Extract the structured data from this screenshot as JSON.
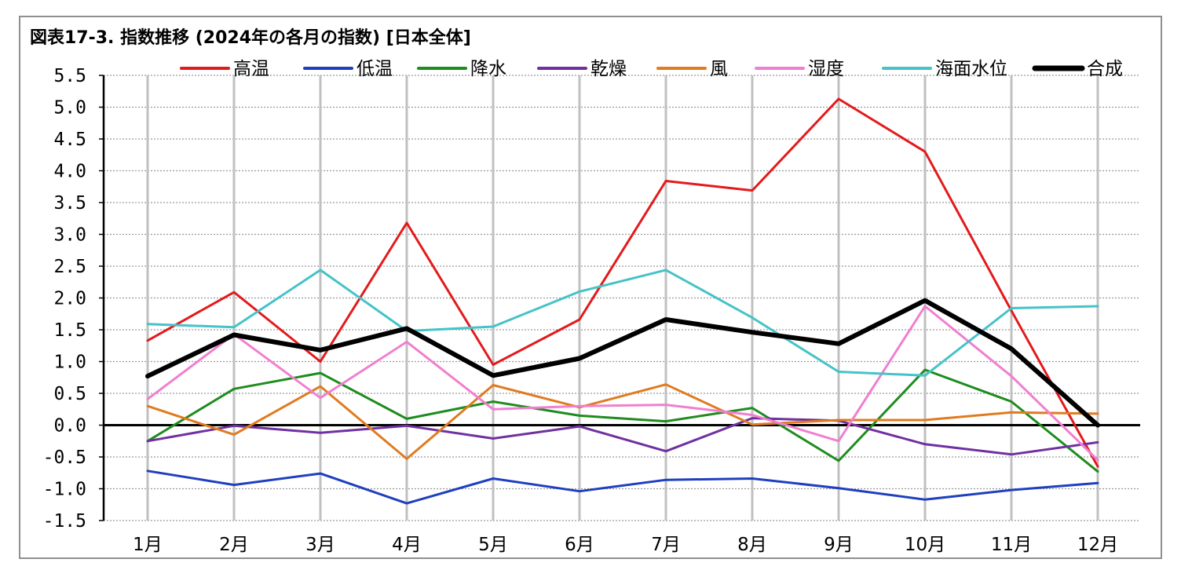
{
  "title": "図表17-3. 指数推移 (2024年の各月の指数) [日本全体]",
  "chart_data": {
    "type": "line",
    "title": "図表17-3. 指数推移 (2024年の各月の指数) [日本全体]",
    "xlabel": "",
    "ylabel": "",
    "ylim": [
      -1.5,
      5.5
    ],
    "ytick_step": 0.5,
    "yticks": [
      "5.5",
      "5.0",
      "4.5",
      "4.0",
      "3.5",
      "3.0",
      "2.5",
      "2.0",
      "1.5",
      "1.0",
      "0.5",
      "0.0",
      "-0.5",
      "-1.0",
      "-1.5"
    ],
    "grid": "vertical solid, horizontal dotted",
    "legend_position": "top",
    "categories": [
      "1月",
      "2月",
      "3月",
      "4月",
      "5月",
      "6月",
      "7月",
      "8月",
      "9月",
      "10月",
      "11月",
      "12月"
    ],
    "series": [
      {
        "name": "高温",
        "color": "#e31a1c",
        "width": 3,
        "values": [
          1.33,
          2.09,
          1.0,
          3.18,
          0.95,
          1.66,
          3.84,
          3.69,
          5.13,
          4.3,
          1.8,
          -0.65
        ]
      },
      {
        "name": "低温",
        "color": "#1f3fbf",
        "width": 3,
        "values": [
          -0.72,
          -0.94,
          -0.76,
          -1.23,
          -0.84,
          -1.04,
          -0.86,
          -0.84,
          -0.99,
          -1.17,
          -1.02,
          -0.91
        ]
      },
      {
        "name": "降水",
        "color": "#1e8c1e",
        "width": 3,
        "values": [
          -0.25,
          0.57,
          0.82,
          0.1,
          0.37,
          0.15,
          0.06,
          0.27,
          -0.56,
          0.87,
          0.37,
          -0.73
        ]
      },
      {
        "name": "乾燥",
        "color": "#7030a0",
        "width": 3,
        "values": [
          -0.25,
          -0.01,
          -0.12,
          -0.01,
          -0.21,
          -0.02,
          -0.41,
          0.11,
          0.07,
          -0.3,
          -0.46,
          -0.27
        ]
      },
      {
        "name": "風",
        "color": "#e07b20",
        "width": 3,
        "values": [
          0.3,
          -0.15,
          0.61,
          -0.53,
          0.63,
          0.28,
          0.64,
          0.01,
          0.08,
          0.08,
          0.2,
          0.18
        ]
      },
      {
        "name": "湿度",
        "color": "#f07fd0",
        "width": 3,
        "values": [
          0.41,
          1.43,
          0.43,
          1.31,
          0.25,
          0.3,
          0.32,
          0.16,
          -0.25,
          1.87,
          0.77,
          -0.55
        ]
      },
      {
        "name": "海面水位",
        "color": "#45c3c8",
        "width": 3,
        "values": [
          1.59,
          1.54,
          2.44,
          1.48,
          1.55,
          2.1,
          2.44,
          1.69,
          0.84,
          0.78,
          1.84,
          1.87
        ]
      },
      {
        "name": "合成",
        "color": "#000000",
        "width": 6,
        "values": [
          0.77,
          1.42,
          1.18,
          1.52,
          0.78,
          1.05,
          1.66,
          1.46,
          1.28,
          1.96,
          1.2,
          0.0
        ]
      }
    ]
  }
}
